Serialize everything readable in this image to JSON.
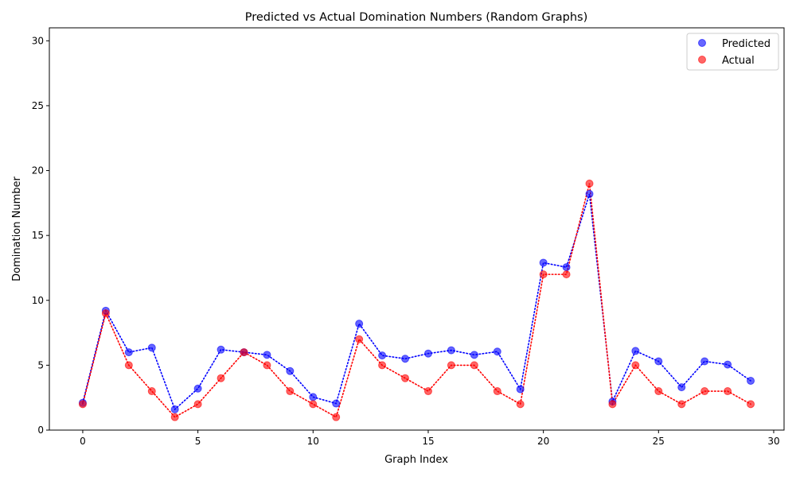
{
  "chart_data": {
    "type": "scatter",
    "title": "Predicted vs Actual Domination Numbers (Random Graphs)",
    "xlabel": "Graph Index",
    "ylabel": "Domination Number",
    "xlim": [
      -1.45,
      30.45
    ],
    "ylim": [
      0,
      31
    ],
    "x_ticks": [
      0,
      5,
      10,
      15,
      20,
      25,
      30
    ],
    "y_ticks": [
      0,
      5,
      10,
      15,
      20,
      25,
      30
    ],
    "grid": false,
    "legend_position": "top-right",
    "x": [
      0,
      1,
      2,
      3,
      4,
      5,
      6,
      7,
      8,
      9,
      10,
      11,
      12,
      13,
      14,
      15,
      16,
      17,
      18,
      19,
      20,
      21,
      22,
      23,
      24,
      25,
      26,
      27,
      28,
      29
    ],
    "series": [
      {
        "name": "Predicted",
        "color": "#0000ff",
        "marker": "circle",
        "line_style": "dotted",
        "values": [
          2.1,
          9.2,
          6.0,
          6.35,
          1.6,
          3.2,
          6.2,
          6.0,
          5.8,
          4.55,
          2.55,
          2.05,
          8.2,
          5.75,
          5.5,
          5.9,
          6.15,
          5.8,
          6.05,
          3.15,
          12.9,
          12.55,
          18.2,
          2.2,
          6.1,
          5.3,
          3.3,
          5.3,
          5.05,
          3.8
        ]
      },
      {
        "name": "Actual",
        "color": "#ff0000",
        "marker": "circle",
        "line_style": "dotted",
        "values": [
          2,
          9,
          5,
          3,
          1,
          2,
          4,
          6,
          5,
          3,
          2,
          1,
          7,
          5,
          4,
          3,
          5,
          5,
          3,
          2,
          12,
          12,
          19,
          2,
          5,
          3,
          2,
          3,
          3,
          2
        ]
      }
    ]
  }
}
